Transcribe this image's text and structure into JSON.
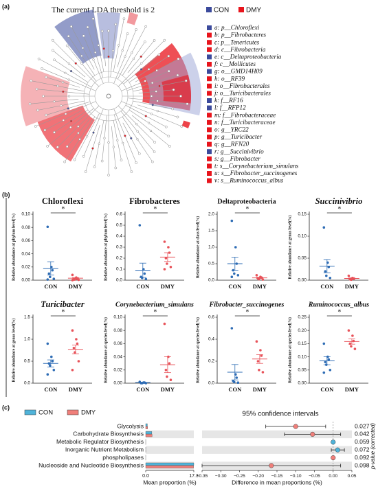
{
  "panel_labels": [
    "(a)",
    "(b)",
    "(c)"
  ],
  "cladogram": {
    "title": "The current LDA threshold is 2",
    "legend": [
      {
        "name": "CON",
        "color": "#3b4a9c"
      },
      {
        "name": "DMY",
        "color": "#e8141c"
      }
    ],
    "taxa": [
      {
        "label": "a: p__Chloroflexi",
        "color": "#3b4a9c"
      },
      {
        "label": "b: p__Fibrobacteres",
        "color": "#e8141c"
      },
      {
        "label": "c: p__Tenericutes",
        "color": "#e8141c"
      },
      {
        "label": "d: c__Fibrobacteria",
        "color": "#e8141c"
      },
      {
        "label": "e: c__Deltaproteobacteria",
        "color": "#3b4a9c"
      },
      {
        "label": "f: c__Mollicutes",
        "color": "#e8141c"
      },
      {
        "label": "g: o__GMD14H09",
        "color": "#3b4a9c"
      },
      {
        "label": "h: o__RF39",
        "color": "#e8141c"
      },
      {
        "label": "i: o__Fibrobacterales",
        "color": "#e8141c"
      },
      {
        "label": "j: o__Turicibacterales",
        "color": "#e8141c"
      },
      {
        "label": "k: f__RF16",
        "color": "#3b4a9c"
      },
      {
        "label": "l: f__RFP12",
        "color": "#3b4a9c"
      },
      {
        "label": "m: f__Fibrobacteraceae",
        "color": "#e8141c"
      },
      {
        "label": "n: f__Turicibacteraceae",
        "color": "#e8141c"
      },
      {
        "label": "o: g__YRC22",
        "color": "#e8141c"
      },
      {
        "label": "p: g__Turicibacter",
        "color": "#e8141c"
      },
      {
        "label": "q: g__RFN20",
        "color": "#e8141c"
      },
      {
        "label": "r: g__Succinivibrio",
        "color": "#3b4a9c"
      },
      {
        "label": "s: g__Fibrobacter",
        "color": "#e8141c"
      },
      {
        "label": "t: s__Corynebacterium_simulans",
        "color": "#e8141c"
      },
      {
        "label": "u: s__Fibrobacter_succinogenes",
        "color": "#e8141c"
      },
      {
        "label": "v: s__Ruminococcus_albus",
        "color": "#e8141c"
      }
    ]
  },
  "chart_data": [
    {
      "type": "scatter",
      "title": "Chloroflexi",
      "italic_title": false,
      "ylabel": "Relative abundance at phylum level(%)",
      "categories": [
        "CON",
        "DMY"
      ],
      "significance": "*",
      "ylim": [
        0,
        0.1
      ],
      "yticks": [
        {
          "value": 0,
          "label": "0.00"
        },
        0.02,
        0.04,
        0.06,
        0.08,
        {
          "value": 0.1,
          "label": "0.10"
        }
      ],
      "series": [
        {
          "color": "#2f6db5",
          "values": [
            0.081,
            0.02,
            0.015,
            0.01,
            0.005,
            0.002,
            0.001
          ],
          "mean": 0.018,
          "sem": 0.01
        },
        {
          "color": "#e8535a",
          "values": [
            0.008,
            0.004,
            0.002,
            0.001,
            0.001,
            0.0005,
            0
          ],
          "mean": 0.003,
          "sem": 0.001
        }
      ]
    },
    {
      "type": "scatter",
      "title": "Fibrobacteres",
      "italic_title": false,
      "ylabel": "Relative abundance at phylum level(%)",
      "categories": [
        "CON",
        "DMY"
      ],
      "significance": "*",
      "ylim": [
        0,
        0.6
      ],
      "yticks": [
        {
          "value": 0,
          "label": "0.0"
        },
        0.1,
        0.2,
        0.3,
        0.4,
        0.5,
        0.6
      ],
      "series": [
        {
          "color": "#2f6db5",
          "values": [
            0.5,
            0.1,
            0.06,
            0.03,
            0.02,
            0.01
          ],
          "mean": 0.09,
          "sem": 0.065
        },
        {
          "color": "#e8535a",
          "values": [
            0.35,
            0.3,
            0.25,
            0.2,
            0.15,
            0.12,
            0.1
          ],
          "mean": 0.21,
          "sem": 0.04
        }
      ]
    },
    {
      "type": "scatter",
      "title": "Deltaproteobacteria",
      "italic_title": false,
      "ylabel": "Relative abundance at class level(%)",
      "categories": [
        "CON",
        "DMY"
      ],
      "significance": "*",
      "ylim": [
        0,
        2
      ],
      "yticks": [
        {
          "value": 0,
          "label": "0.0"
        },
        0.5,
        {
          "value": 1,
          "label": "1.0"
        },
        1.5,
        {
          "value": 2,
          "label": "2.0"
        }
      ],
      "series": [
        {
          "color": "#2f6db5",
          "values": [
            1.8,
            1.0,
            0.5,
            0.3,
            0.2,
            0.15,
            0.1
          ],
          "mean": 0.5,
          "sem": 0.2
        },
        {
          "color": "#e8535a",
          "values": [
            0.15,
            0.1,
            0.08,
            0.05,
            0.03,
            0.02
          ],
          "mean": 0.07,
          "sem": 0.02
        }
      ]
    },
    {
      "type": "scatter",
      "title": "Succinivibrio",
      "italic_title": true,
      "ylabel": "Relative abundance at genus level(%)",
      "categories": [
        "CON",
        "DMY"
      ],
      "significance": "*",
      "ylim": [
        0,
        0.15
      ],
      "yticks": [
        {
          "value": 0,
          "label": "0.00"
        },
        0.05,
        {
          "value": 0.1,
          "label": "0.10"
        },
        0.15
      ],
      "series": [
        {
          "color": "#2f6db5",
          "values": [
            0.12,
            0.04,
            0.03,
            0.02,
            0.01,
            0.005
          ],
          "mean": 0.032,
          "sem": 0.015
        },
        {
          "color": "#e8535a",
          "values": [
            0.01,
            0.005,
            0.003,
            0.002,
            0.001
          ],
          "mean": 0.004,
          "sem": 0.002
        }
      ]
    },
    {
      "type": "scatter",
      "title": "Turicibacter",
      "italic_title": true,
      "ylabel": "Relative abundance at genus level(%)",
      "categories": [
        "CON",
        "DMY"
      ],
      "significance": "*",
      "ylim": [
        0,
        1.5
      ],
      "yticks": [
        {
          "value": 0,
          "label": "0.0"
        },
        0.5,
        {
          "value": 1,
          "label": "1.0"
        },
        1.5
      ],
      "series": [
        {
          "color": "#2f6db5",
          "values": [
            0.9,
            0.6,
            0.5,
            0.45,
            0.4,
            0.3,
            0.2
          ],
          "mean": 0.45,
          "sem": 0.08
        },
        {
          "color": "#e8535a",
          "values": [
            1.2,
            1.0,
            0.9,
            0.8,
            0.7,
            0.5,
            0.3
          ],
          "mean": 0.77,
          "sem": 0.1
        }
      ]
    },
    {
      "type": "scatter",
      "title": "Corynebacterium_simulans",
      "italic_title": true,
      "ylabel": "Relative abundance at species level(%)",
      "categories": [
        "CON",
        "DMY"
      ],
      "significance": "*",
      "ylim": [
        0,
        0.1
      ],
      "yticks": [
        {
          "value": 0,
          "label": "0.00"
        },
        0.02,
        0.04,
        0.06,
        0.08,
        {
          "value": 0.1,
          "label": "0.10"
        }
      ],
      "series": [
        {
          "color": "#2f6db5",
          "values": [
            0.002,
            0.001,
            0.001,
            0,
            0,
            0
          ],
          "mean": 0.001,
          "sem": 0.0005
        },
        {
          "color": "#e8535a",
          "values": [
            0.09,
            0.04,
            0.03,
            0.02,
            0.01,
            0.005
          ],
          "mean": 0.028,
          "sem": 0.012
        }
      ]
    },
    {
      "type": "scatter",
      "title": "Fibrobacter_succinogenes",
      "italic_title": true,
      "ylabel": "Relative abundance at species level(%)",
      "categories": [
        "CON",
        "DMY"
      ],
      "significance": "*",
      "ylim": [
        0,
        0.6
      ],
      "yticks": [
        {
          "value": 0,
          "label": "0.0"
        },
        0.2,
        0.4,
        0.6
      ],
      "series": [
        {
          "color": "#2f6db5",
          "values": [
            0.5,
            0.08,
            0.05,
            0.02,
            0.01,
            0.005
          ],
          "mean": 0.1,
          "sem": 0.07
        },
        {
          "color": "#e8535a",
          "values": [
            0.38,
            0.3,
            0.25,
            0.2,
            0.12,
            0.1
          ],
          "mean": 0.22,
          "sem": 0.04
        }
      ]
    },
    {
      "type": "scatter",
      "title": "Ruminococcus_albus",
      "italic_title": true,
      "ylabel": "Relative abundance at species level(%)",
      "categories": [
        "CON",
        "DMY"
      ],
      "significance": "*",
      "ylim": [
        0,
        0.25
      ],
      "yticks": [
        {
          "value": 0,
          "label": "0.00"
        },
        0.05,
        {
          "value": 0.1,
          "label": "0.10"
        },
        0.15,
        {
          "value": 0.2,
          "label": "0.20"
        },
        0.25
      ],
      "series": [
        {
          "color": "#2f6db5",
          "values": [
            0.15,
            0.1,
            0.09,
            0.08,
            0.07,
            0.05,
            0.04
          ],
          "mean": 0.085,
          "sem": 0.015
        },
        {
          "color": "#e8535a",
          "values": [
            0.2,
            0.18,
            0.16,
            0.15,
            0.14,
            0.13
          ],
          "mean": 0.158,
          "sem": 0.01
        }
      ]
    },
    {
      "type": "barh",
      "xlabel": "Mean proportion (%)",
      "categories": [
        "Glycolysis",
        "Carbohydrate Biosynthesis",
        "Metabolic Regulator Biosynthesis",
        "Inorganic Nutrient Metabolism",
        "phospholipases",
        "Nucleoside and Nucleotide Biosynthesis"
      ],
      "xlim": [
        0,
        17.3
      ],
      "xticks": [
        {
          "value": 0,
          "label": "0.0"
        },
        17.3
      ],
      "series": [
        {
          "name": "CON",
          "color": "#4fb3d9",
          "values": [
            0.6,
            2.2,
            0.02,
            0.02,
            0.01,
            17.3
          ]
        },
        {
          "name": "DMY",
          "color": "#f07f7a",
          "values": [
            0.7,
            2.3,
            0.02,
            0.02,
            0.01,
            17.2
          ]
        }
      ]
    },
    {
      "type": "errorbar",
      "title": "95% confidence intervals",
      "xlabel": "Difference in mean proportions (%)",
      "y2label": "p-value (corrected)",
      "xlim": [
        -0.35,
        0.05
      ],
      "xticks": [
        {
          "value": -0.35,
          "label": "−0.35"
        },
        {
          "value": -0.3,
          "label": "−0.30"
        },
        {
          "value": -0.25,
          "label": "−0.25"
        },
        {
          "value": -0.2,
          "label": "−0.20"
        },
        {
          "value": -0.15,
          "label": "−0.15"
        },
        {
          "value": -0.1,
          "label": "−0.10"
        },
        {
          "value": -0.05,
          "label": "−0.05"
        },
        {
          "value": 0,
          "label": "0.00"
        },
        0.05
      ],
      "values": [
        -0.1,
        -0.055,
        0.0,
        0.012,
        0.0,
        -0.165
      ],
      "ci_low": [
        -0.18,
        -0.13,
        -0.003,
        -0.005,
        -0.003,
        -0.35
      ],
      "ci_high": [
        -0.02,
        0.02,
        0.003,
        0.03,
        0.003,
        0.02
      ],
      "colors": [
        "#f07f7a",
        "#f07f7a",
        "#4fb3d9",
        "#4fb3d9",
        "#f07f7a",
        "#f07f7a"
      ],
      "p_values": [
        0.027,
        0.042,
        0.059,
        0.072,
        0.092,
        0.098
      ]
    }
  ]
}
